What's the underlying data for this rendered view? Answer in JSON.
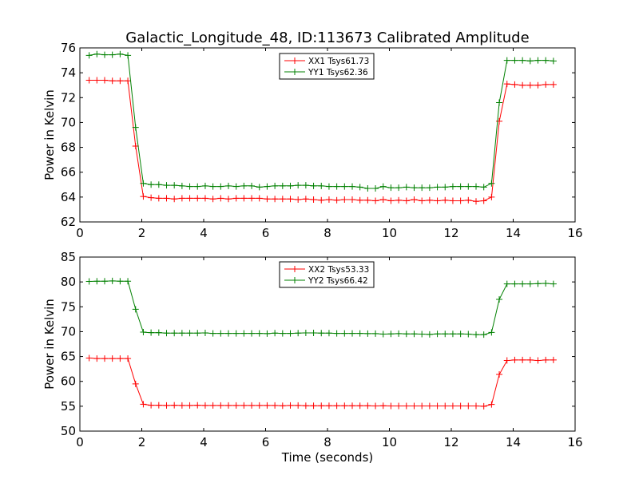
{
  "chart_data": {
    "title": "Galactic_Longitude_48, ID:113673 Calibrated Amplitude",
    "xlabel": "Time (seconds)",
    "panels": [
      {
        "type": "line",
        "ylabel": "Power in Kelvin",
        "xlim": [
          0,
          16
        ],
        "ylim": [
          62,
          76
        ],
        "xticks": [
          0,
          2,
          4,
          6,
          8,
          10,
          12,
          14,
          16
        ],
        "yticks": [
          62,
          64,
          66,
          68,
          70,
          72,
          74,
          76
        ],
        "legend": "top-center",
        "series": [
          {
            "name": "XX1 Tsys61.73",
            "color": "#ff0000",
            "x": [
              0.3,
              0.55,
              0.8,
              1.05,
              1.3,
              1.55,
              1.8,
              2.05,
              2.3,
              2.55,
              2.8,
              3.05,
              3.3,
              3.55,
              3.8,
              4.05,
              4.3,
              4.55,
              4.8,
              5.05,
              5.3,
              5.55,
              5.8,
              6.05,
              6.3,
              6.55,
              6.8,
              7.05,
              7.3,
              7.55,
              7.8,
              8.05,
              8.3,
              8.55,
              8.8,
              9.05,
              9.3,
              9.55,
              9.8,
              10.05,
              10.3,
              10.55,
              10.8,
              11.05,
              11.3,
              11.55,
              11.8,
              12.05,
              12.3,
              12.55,
              12.8,
              13.05,
              13.3,
              13.55,
              13.8,
              14.05,
              14.3,
              14.55,
              14.8,
              15.05,
              15.3
            ],
            "y": [
              73.4,
              73.4,
              73.4,
              73.35,
              73.35,
              73.35,
              68.1,
              64.05,
              63.95,
              63.9,
              63.9,
              63.85,
              63.9,
              63.9,
              63.9,
              63.9,
              63.85,
              63.9,
              63.85,
              63.9,
              63.9,
              63.9,
              63.9,
              63.85,
              63.85,
              63.85,
              63.85,
              63.8,
              63.85,
              63.8,
              63.75,
              63.8,
              63.75,
              63.8,
              63.8,
              63.75,
              63.75,
              63.7,
              63.8,
              63.7,
              63.75,
              63.7,
              63.8,
              63.7,
              63.75,
              63.7,
              63.75,
              63.7,
              63.7,
              63.75,
              63.65,
              63.7,
              64.0,
              70.1,
              73.1,
              73.05,
              73.0,
              73.0,
              73.0,
              73.05,
              73.05
            ]
          },
          {
            "name": "YY1 Tsys62.36",
            "color": "#008000",
            "x": [
              0.3,
              0.55,
              0.8,
              1.05,
              1.3,
              1.55,
              1.8,
              2.05,
              2.3,
              2.55,
              2.8,
              3.05,
              3.3,
              3.55,
              3.8,
              4.05,
              4.3,
              4.55,
              4.8,
              5.05,
              5.3,
              5.55,
              5.8,
              6.05,
              6.3,
              6.55,
              6.8,
              7.05,
              7.3,
              7.55,
              7.8,
              8.05,
              8.3,
              8.55,
              8.8,
              9.05,
              9.3,
              9.55,
              9.8,
              10.05,
              10.3,
              10.55,
              10.8,
              11.05,
              11.3,
              11.55,
              11.8,
              12.05,
              12.3,
              12.55,
              12.8,
              13.05,
              13.3,
              13.55,
              13.8,
              14.05,
              14.3,
              14.55,
              14.8,
              15.05,
              15.3
            ],
            "y": [
              75.4,
              75.5,
              75.45,
              75.45,
              75.5,
              75.4,
              69.6,
              65.1,
              65.0,
              65.0,
              64.95,
              64.95,
              64.9,
              64.85,
              64.85,
              64.9,
              64.85,
              64.85,
              64.9,
              64.85,
              64.9,
              64.9,
              64.8,
              64.85,
              64.9,
              64.9,
              64.9,
              64.95,
              64.95,
              64.9,
              64.9,
              64.85,
              64.85,
              64.85,
              64.85,
              64.8,
              64.7,
              64.7,
              64.85,
              64.75,
              64.75,
              64.8,
              64.75,
              64.75,
              64.75,
              64.8,
              64.8,
              64.85,
              64.85,
              64.85,
              64.85,
              64.8,
              65.1,
              71.6,
              75.0,
              75.0,
              75.0,
              74.95,
              75.0,
              75.0,
              74.95
            ]
          }
        ]
      },
      {
        "type": "line",
        "ylabel": "Power in Kelvin",
        "xlim": [
          0,
          16
        ],
        "ylim": [
          50,
          85
        ],
        "xticks": [
          0,
          2,
          4,
          6,
          8,
          10,
          12,
          14,
          16
        ],
        "yticks": [
          50,
          55,
          60,
          65,
          70,
          75,
          80,
          85
        ],
        "legend": "top-center",
        "series": [
          {
            "name": "XX2 Tsys53.33",
            "color": "#ff0000",
            "x": [
              0.3,
              0.55,
              0.8,
              1.05,
              1.3,
              1.55,
              1.8,
              2.05,
              2.3,
              2.55,
              2.8,
              3.05,
              3.3,
              3.55,
              3.8,
              4.05,
              4.3,
              4.55,
              4.8,
              5.05,
              5.3,
              5.55,
              5.8,
              6.05,
              6.3,
              6.55,
              6.8,
              7.05,
              7.3,
              7.55,
              7.8,
              8.05,
              8.3,
              8.55,
              8.8,
              9.05,
              9.3,
              9.55,
              9.8,
              10.05,
              10.3,
              10.55,
              10.8,
              11.05,
              11.3,
              11.55,
              11.8,
              12.05,
              12.3,
              12.55,
              12.8,
              13.05,
              13.3,
              13.55,
              13.8,
              14.05,
              14.3,
              14.55,
              14.8,
              15.05,
              15.3
            ],
            "y": [
              64.7,
              64.6,
              64.6,
              64.6,
              64.6,
              64.6,
              59.5,
              55.4,
              55.2,
              55.2,
              55.15,
              55.2,
              55.15,
              55.15,
              55.2,
              55.15,
              55.15,
              55.15,
              55.15,
              55.15,
              55.15,
              55.15,
              55.15,
              55.15,
              55.15,
              55.1,
              55.15,
              55.15,
              55.1,
              55.1,
              55.1,
              55.1,
              55.1,
              55.1,
              55.1,
              55.1,
              55.1,
              55.05,
              55.1,
              55.05,
              55.05,
              55.05,
              55.05,
              55.05,
              55.05,
              55.05,
              55.05,
              55.05,
              55.05,
              55.05,
              55.05,
              55.0,
              55.35,
              61.4,
              64.2,
              64.3,
              64.3,
              64.3,
              64.2,
              64.3,
              64.3
            ]
          },
          {
            "name": "YY2 Tsys66.42",
            "color": "#008000",
            "x": [
              0.3,
              0.55,
              0.8,
              1.05,
              1.3,
              1.55,
              1.8,
              2.05,
              2.3,
              2.55,
              2.8,
              3.05,
              3.3,
              3.55,
              3.8,
              4.05,
              4.3,
              4.55,
              4.8,
              5.05,
              5.3,
              5.55,
              5.8,
              6.05,
              6.3,
              6.55,
              6.8,
              7.05,
              7.3,
              7.55,
              7.8,
              8.05,
              8.3,
              8.55,
              8.8,
              9.05,
              9.3,
              9.55,
              9.8,
              10.05,
              10.3,
              10.55,
              10.8,
              11.05,
              11.3,
              11.55,
              11.8,
              12.05,
              12.3,
              12.55,
              12.8,
              13.05,
              13.3,
              13.55,
              13.8,
              14.05,
              14.3,
              14.55,
              14.8,
              15.05,
              15.3
            ],
            "y": [
              80.1,
              80.15,
              80.15,
              80.2,
              80.15,
              80.15,
              74.5,
              69.9,
              69.8,
              69.8,
              69.7,
              69.7,
              69.7,
              69.7,
              69.7,
              69.75,
              69.65,
              69.65,
              69.65,
              69.65,
              69.65,
              69.65,
              69.65,
              69.6,
              69.7,
              69.65,
              69.65,
              69.7,
              69.75,
              69.75,
              69.7,
              69.7,
              69.65,
              69.65,
              69.65,
              69.65,
              69.6,
              69.6,
              69.5,
              69.55,
              69.6,
              69.55,
              69.55,
              69.5,
              69.45,
              69.55,
              69.55,
              69.55,
              69.55,
              69.5,
              69.4,
              69.4,
              69.85,
              76.5,
              79.6,
              79.6,
              79.6,
              79.6,
              79.65,
              79.7,
              79.6
            ]
          }
        ]
      }
    ]
  }
}
